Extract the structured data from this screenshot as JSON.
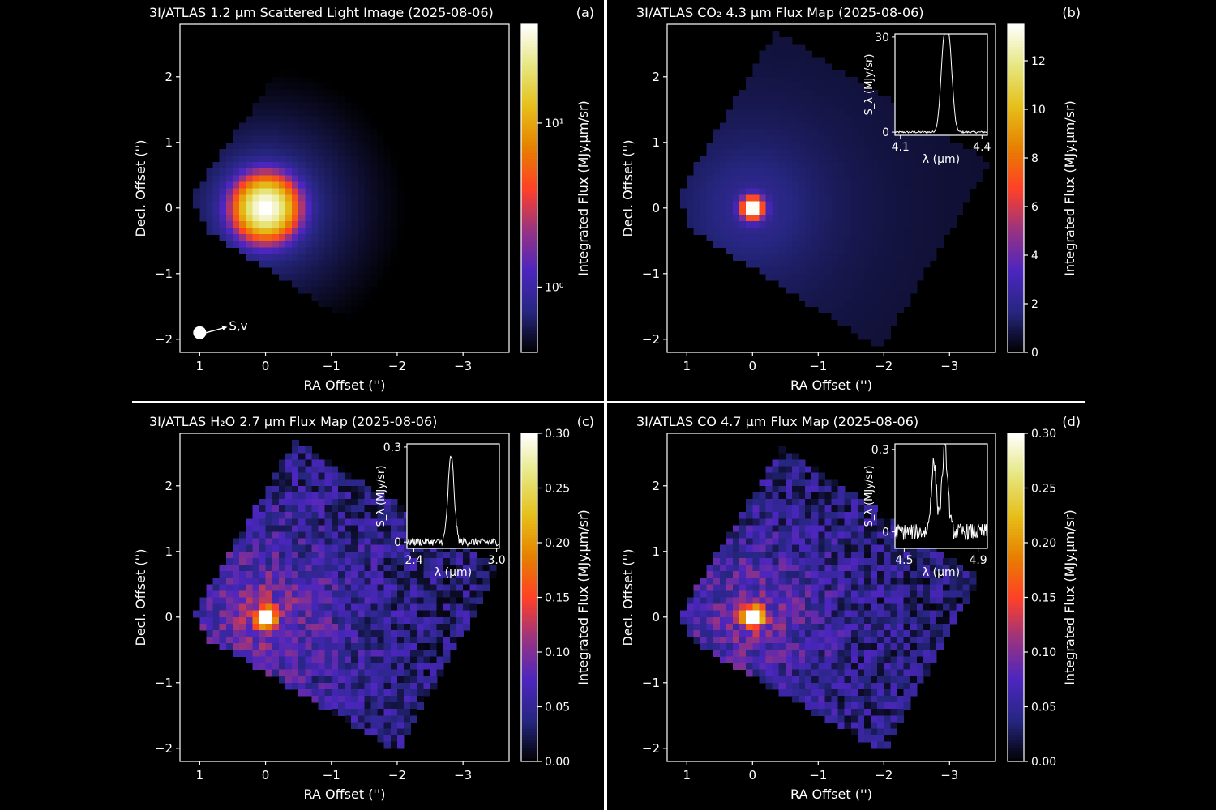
{
  "page": {
    "background": "#000000",
    "panel_background": "#000000",
    "divider_color": "#ffffff",
    "text_color": "#ffffff"
  },
  "chart_data": [
    {
      "type": "heatmap",
      "panel_label": "(a)",
      "title": "3I/ATLAS 1.2 μm Scattered Light Image (2025-08-06)",
      "xlabel": "RA Offset ('')",
      "ylabel": "Decl. Offset ('')",
      "xlim": [
        1.3,
        -3.7
      ],
      "ylim": [
        -2.2,
        2.8
      ],
      "xticks": [
        1,
        0,
        -1,
        -2,
        -3
      ],
      "xtick_labels": [
        "1",
        "0",
        "−1",
        "−2",
        "−3"
      ],
      "yticks": [
        -2,
        -1,
        0,
        1,
        2
      ],
      "ytick_labels": [
        "−2",
        "−1",
        "0",
        "1",
        "2"
      ],
      "colormap": "CMRmap",
      "colorbar": {
        "label": "Integrated Flux (MJy.μm/sr)",
        "scale": "log",
        "range": [
          0.4,
          40
        ],
        "ticks": [
          1,
          10
        ],
        "tick_labels": [
          "10⁰",
          "10¹"
        ]
      },
      "footprint": [
        [
          1.15,
          0.15
        ],
        [
          -0.35,
          2.3
        ],
        [
          -3.6,
          0.7
        ],
        [
          -1.95,
          -2.15
        ],
        [
          0.9,
          -0.35
        ]
      ],
      "nucleus": {
        "x": 0.0,
        "y": 0.0,
        "peak": 40,
        "core_width": 0.22
      },
      "background_level": 0.55,
      "noise": 0.0,
      "annotation": {
        "text": "S,v",
        "x": 1.0,
        "y": -1.9
      }
    },
    {
      "type": "heatmap",
      "panel_label": "(b)",
      "title": "3I/ATLAS CO₂ 4.3 μm Flux Map (2025-08-06)",
      "xlabel": "RA Offset ('')",
      "ylabel": "Decl. Offset ('')",
      "xlim": [
        1.3,
        -3.7
      ],
      "ylim": [
        -2.2,
        2.8
      ],
      "xticks": [
        1,
        0,
        -1,
        -2,
        -3
      ],
      "xtick_labels": [
        "1",
        "0",
        "−1",
        "−2",
        "−3"
      ],
      "yticks": [
        -2,
        -1,
        0,
        1,
        2
      ],
      "ytick_labels": [
        "−2",
        "−1",
        "0",
        "1",
        "2"
      ],
      "colormap": "CMRmap",
      "colorbar": {
        "label": "Integrated Flux (MJy.μm/sr)",
        "scale": "linear",
        "range": [
          0,
          13.5
        ],
        "ticks": [
          0,
          2,
          4,
          6,
          8,
          10,
          12
        ],
        "tick_labels": [
          "0",
          "2",
          "4",
          "6",
          "8",
          "10",
          "12"
        ]
      },
      "footprint": [
        [
          1.15,
          0.15
        ],
        [
          -0.35,
          2.7
        ],
        [
          -3.6,
          0.7
        ],
        [
          -1.95,
          -2.15
        ],
        [
          0.9,
          -0.35
        ]
      ],
      "nucleus": {
        "x": 0.0,
        "y": 0.0,
        "peak": 13.5,
        "core_width": 0.11
      },
      "background_level": 1.2,
      "noise": 0.0,
      "inset": {
        "xlabel": "λ (μm)",
        "ylabel": "S_λ (MJy/sr)",
        "xlim": [
          4.08,
          4.42
        ],
        "ylim": [
          -1,
          31
        ],
        "xticks": [
          4.1,
          4.4
        ],
        "xtick_labels": [
          "4.1",
          "4.4"
        ],
        "yticks": [
          0,
          30
        ],
        "ytick_labels": [
          "0",
          "30"
        ],
        "lines": [
          {
            "center": 4.26,
            "width": 0.012,
            "amp": 25
          },
          {
            "center": 4.28,
            "width": 0.012,
            "amp": 24
          }
        ],
        "noise": 0.3
      }
    },
    {
      "type": "heatmap",
      "panel_label": "(c)",
      "title": "3I/ATLAS H₂O 2.7 μm Flux Map (2025-08-06)",
      "xlabel": "RA Offset ('')",
      "ylabel": "Decl. Offset ('')",
      "xlim": [
        1.3,
        -3.7
      ],
      "ylim": [
        -2.2,
        2.8
      ],
      "xticks": [
        1,
        0,
        -1,
        -2,
        -3
      ],
      "xtick_labels": [
        "1",
        "0",
        "−1",
        "−2",
        "−3"
      ],
      "yticks": [
        -2,
        -1,
        0,
        1,
        2
      ],
      "ytick_labels": [
        "−2",
        "−1",
        "0",
        "1",
        "2"
      ],
      "colormap": "CMRmap",
      "colorbar": {
        "label": "Integrated Flux (MJy.μm/sr)",
        "scale": "linear",
        "range": [
          0,
          0.3
        ],
        "ticks": [
          0,
          0.05,
          0.1,
          0.15,
          0.2,
          0.25,
          0.3
        ],
        "tick_labels": [
          "0.00",
          "0.05",
          "0.10",
          "0.15",
          "0.20",
          "0.25",
          "0.30"
        ]
      },
      "footprint": [
        [
          1.1,
          0.05
        ],
        [
          -0.45,
          2.7
        ],
        [
          -3.55,
          0.75
        ],
        [
          -2.0,
          -2.05
        ],
        [
          0.85,
          -0.35
        ]
      ],
      "nucleus": {
        "x": 0.0,
        "y": 0.0,
        "peak": 0.3,
        "core_width": 0.09
      },
      "background_level": 0.055,
      "noise": 0.035,
      "inset": {
        "xlabel": "λ (μm)",
        "ylabel": "S_λ (MJy/sr)",
        "xlim": [
          2.35,
          3.02
        ],
        "ylim": [
          -0.02,
          0.31
        ],
        "xticks": [
          2.4,
          3.0
        ],
        "xtick_labels": [
          "2.4",
          "3.0"
        ],
        "yticks": [
          0,
          0.3
        ],
        "ytick_labels": [
          "0",
          "0.3"
        ],
        "lines": [
          {
            "center": 2.67,
            "width": 0.022,
            "amp": 0.27
          }
        ],
        "noise": 0.012
      }
    },
    {
      "type": "heatmap",
      "panel_label": "(d)",
      "title": "3I/ATLAS CO 4.7 μm Flux Map (2025-08-06)",
      "xlabel": "RA Offset ('')",
      "ylabel": "Decl. Offset ('')",
      "xlim": [
        1.3,
        -3.7
      ],
      "ylim": [
        -2.2,
        2.8
      ],
      "xticks": [
        1,
        0,
        -1,
        -2,
        -3
      ],
      "xtick_labels": [
        "1",
        "0",
        "−1",
        "−2",
        "−3"
      ],
      "yticks": [
        -2,
        -1,
        0,
        1,
        2
      ],
      "ytick_labels": [
        "−2",
        "−1",
        "0",
        "1",
        "2"
      ],
      "colormap": "CMRmap",
      "colorbar": {
        "label": "Integrated Flux (MJy.μm/sr)",
        "scale": "linear",
        "range": [
          0,
          0.3
        ],
        "ticks": [
          0,
          0.05,
          0.1,
          0.15,
          0.2,
          0.25,
          0.3
        ],
        "tick_labels": [
          "0.00",
          "0.05",
          "0.10",
          "0.15",
          "0.20",
          "0.25",
          "0.30"
        ]
      },
      "footprint": [
        [
          1.1,
          0.05
        ],
        [
          -0.45,
          2.6
        ],
        [
          -3.45,
          0.6
        ],
        [
          -2.0,
          -2.05
        ],
        [
          0.9,
          -0.4
        ]
      ],
      "nucleus": {
        "x": 0.0,
        "y": 0.0,
        "peak": 0.3,
        "core_width": 0.1
      },
      "background_level": 0.05,
      "noise": 0.035,
      "inset": {
        "xlabel": "λ (μm)",
        "ylabel": "S_λ (MJy/sr)",
        "xlim": [
          4.45,
          4.95
        ],
        "ylim": [
          -0.06,
          0.32
        ],
        "xticks": [
          4.5,
          4.9
        ],
        "xtick_labels": [
          "4.5",
          "4.9"
        ],
        "yticks": [
          0,
          0.3
        ],
        "ytick_labels": [
          "0",
          "0.3"
        ],
        "lines": [
          {
            "center": 4.66,
            "width": 0.014,
            "amp": 0.25
          },
          {
            "center": 4.72,
            "width": 0.016,
            "amp": 0.3
          }
        ],
        "noise": 0.03
      }
    }
  ]
}
